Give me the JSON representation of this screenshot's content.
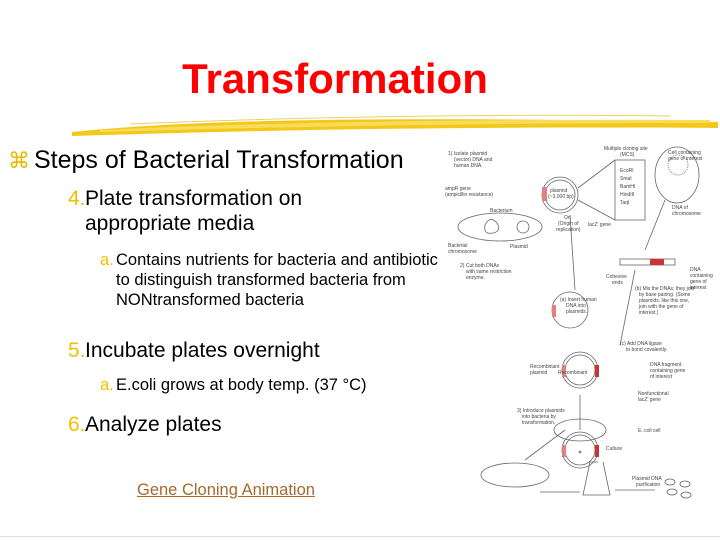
{
  "slide": {
    "title": "Transformation",
    "bullet_icon": "command-key-bullet-icon",
    "heading": "Steps of Bacterial Transformation",
    "steps": [
      {
        "num": "4.",
        "text": "Plate transformation on appropriate media",
        "sub": [
          {
            "num": "a.",
            "text": "Contains nutrients for bacteria and antibiotic to distinguish transformed bacteria from NONtransformed bacteria"
          }
        ]
      },
      {
        "num": "5.",
        "text": "Incubate plates overnight",
        "sub": [
          {
            "num": "a.",
            "text": "E.coli grows at body temp. (37 °C)"
          }
        ]
      },
      {
        "num": "6.",
        "text": "Analyze plates",
        "sub": []
      }
    ],
    "link": "Gene Cloning Animation",
    "colors": {
      "title": "#ff0000",
      "numbers": "#f0c000",
      "brush": "#f2c200",
      "link": "#a36b2b"
    }
  },
  "diagram": {
    "l1": "1) Isolate plasmid",
    "l2": "(vector) DNA and",
    "l3": "human DNA.",
    "mcs1": "Multiple cloning site",
    "mcs2": "(MCS)",
    "enz": [
      "EcoRI",
      "SmaI",
      "BamHI",
      "HindIII",
      "TaqI"
    ],
    "cell1": "Cell containing",
    "cell2": "gene of interest",
    "amp1": "ampR gene",
    "amp2": "(ampicillin resistance)",
    "pl1": "plasmid",
    "pl2": "(~3,000 bp)",
    "bact": "Bacterium",
    "ori1": "Ori",
    "ori2": "(Origin of",
    "ori3": "replication)",
    "lacz": "lacZ' gene",
    "bc1": "Bacterial",
    "bc2": "chromosome",
    "plasmid": "Plasmid",
    "doc1": "DNA of",
    "doc2": "chromosome",
    "cut1": "2) Cut both DNAs",
    "cut2": "with same restriction",
    "cut3": "enzyme.",
    "coh1": "Cohesive",
    "coh2": "ends",
    "dc1": "DNA",
    "dc2": "containing",
    "dc3": "gene of",
    "dc4": "interest",
    "ins1": "(a) Insert human",
    "ins2": "DNA into",
    "ins3": "plasmids.",
    "mix1": "(b) Mix the DNAs; they join",
    "mix2": "by base pairing. (Some",
    "mix3": "plasmids, like this one,",
    "mix4": "join with the gene of",
    "mix5": "interest.)",
    "lig1": "(c) Add DNA ligase",
    "lig2": "to bond covalently.",
    "rec1": "Recombinant",
    "rec2": "plasmid",
    "frag1": "DNA fragment",
    "frag2": "containing gene",
    "frag3": "of interest",
    "nf1": "Nonfunctional",
    "nf2": "lacZ' gene",
    "intro1": "3) Introduce plasmids",
    "intro2": "into bacteria by",
    "intro3": "transformation.",
    "ecoli": "E. coli cell",
    "culture": "Culture",
    "pur1": "Plasmid DNA",
    "pur2": "purification"
  }
}
